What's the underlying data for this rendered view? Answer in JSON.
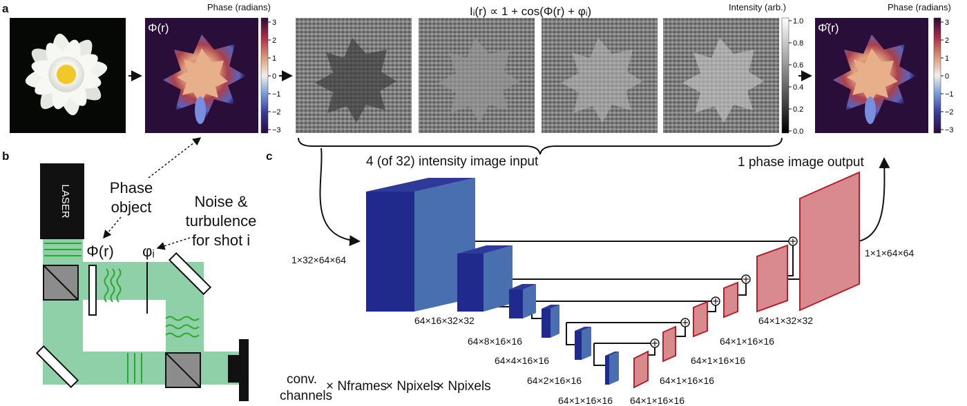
{
  "panels": {
    "a": "a",
    "b": "b",
    "c": "c"
  },
  "panel_a": {
    "phase_symbol": "Φ(r)",
    "phase_label": "Phase (radians)",
    "phase_ticks": [
      "3",
      "2",
      "1",
      "0",
      "−1",
      "−2",
      "−3"
    ],
    "equation": "Iᵢ(r) ∝ 1 + cos(Φ(r) + φᵢ)",
    "intensity_label": "Intensity (arb.)",
    "intensity_ticks": [
      "1.0",
      "0.8",
      "0.6",
      "0.4",
      "0.2",
      "0.0"
    ],
    "output_symbol": "Φ̂(r)",
    "output_phase_label": "Phase (radians)"
  },
  "panel_b": {
    "laser": "LASER",
    "phase_object": [
      "Phase",
      "object"
    ],
    "noise": [
      "Noise &",
      "turbulence",
      "for shot i"
    ],
    "phi_r": "Φ(r)",
    "phi_i": "φᵢ"
  },
  "panel_c": {
    "input_label": "4 (of 32) intensity image input",
    "output_label": "1 phase image output",
    "dims": {
      "input": "1×32×64×64",
      "d1": "64×16×32×32",
      "d2": "64×8×16×16",
      "d3": "64×4×16×16",
      "d4": "64×2×16×16",
      "d5": "64×1×16×16",
      "u1": "64×1×16×16",
      "u2": "64×1×16×16",
      "u3": "64×1×16×16",
      "u4": "64×1×16×16",
      "u5": "64×1×32×32",
      "output": "1×1×64×64"
    },
    "legend": {
      "line1": "conv.",
      "line2": "channels",
      "frames": "× Nframes",
      "pixels1": "× Npixels",
      "pixels2": "× Npixels"
    }
  },
  "colors": {
    "encoder_front": "#1f2a8c",
    "encoder_side": "#4a6fb0",
    "decoder_front": "#d98a8e",
    "decoder_edge": "#b3202a",
    "beam": "#8fd0a8",
    "wave": "#2aa82a"
  }
}
